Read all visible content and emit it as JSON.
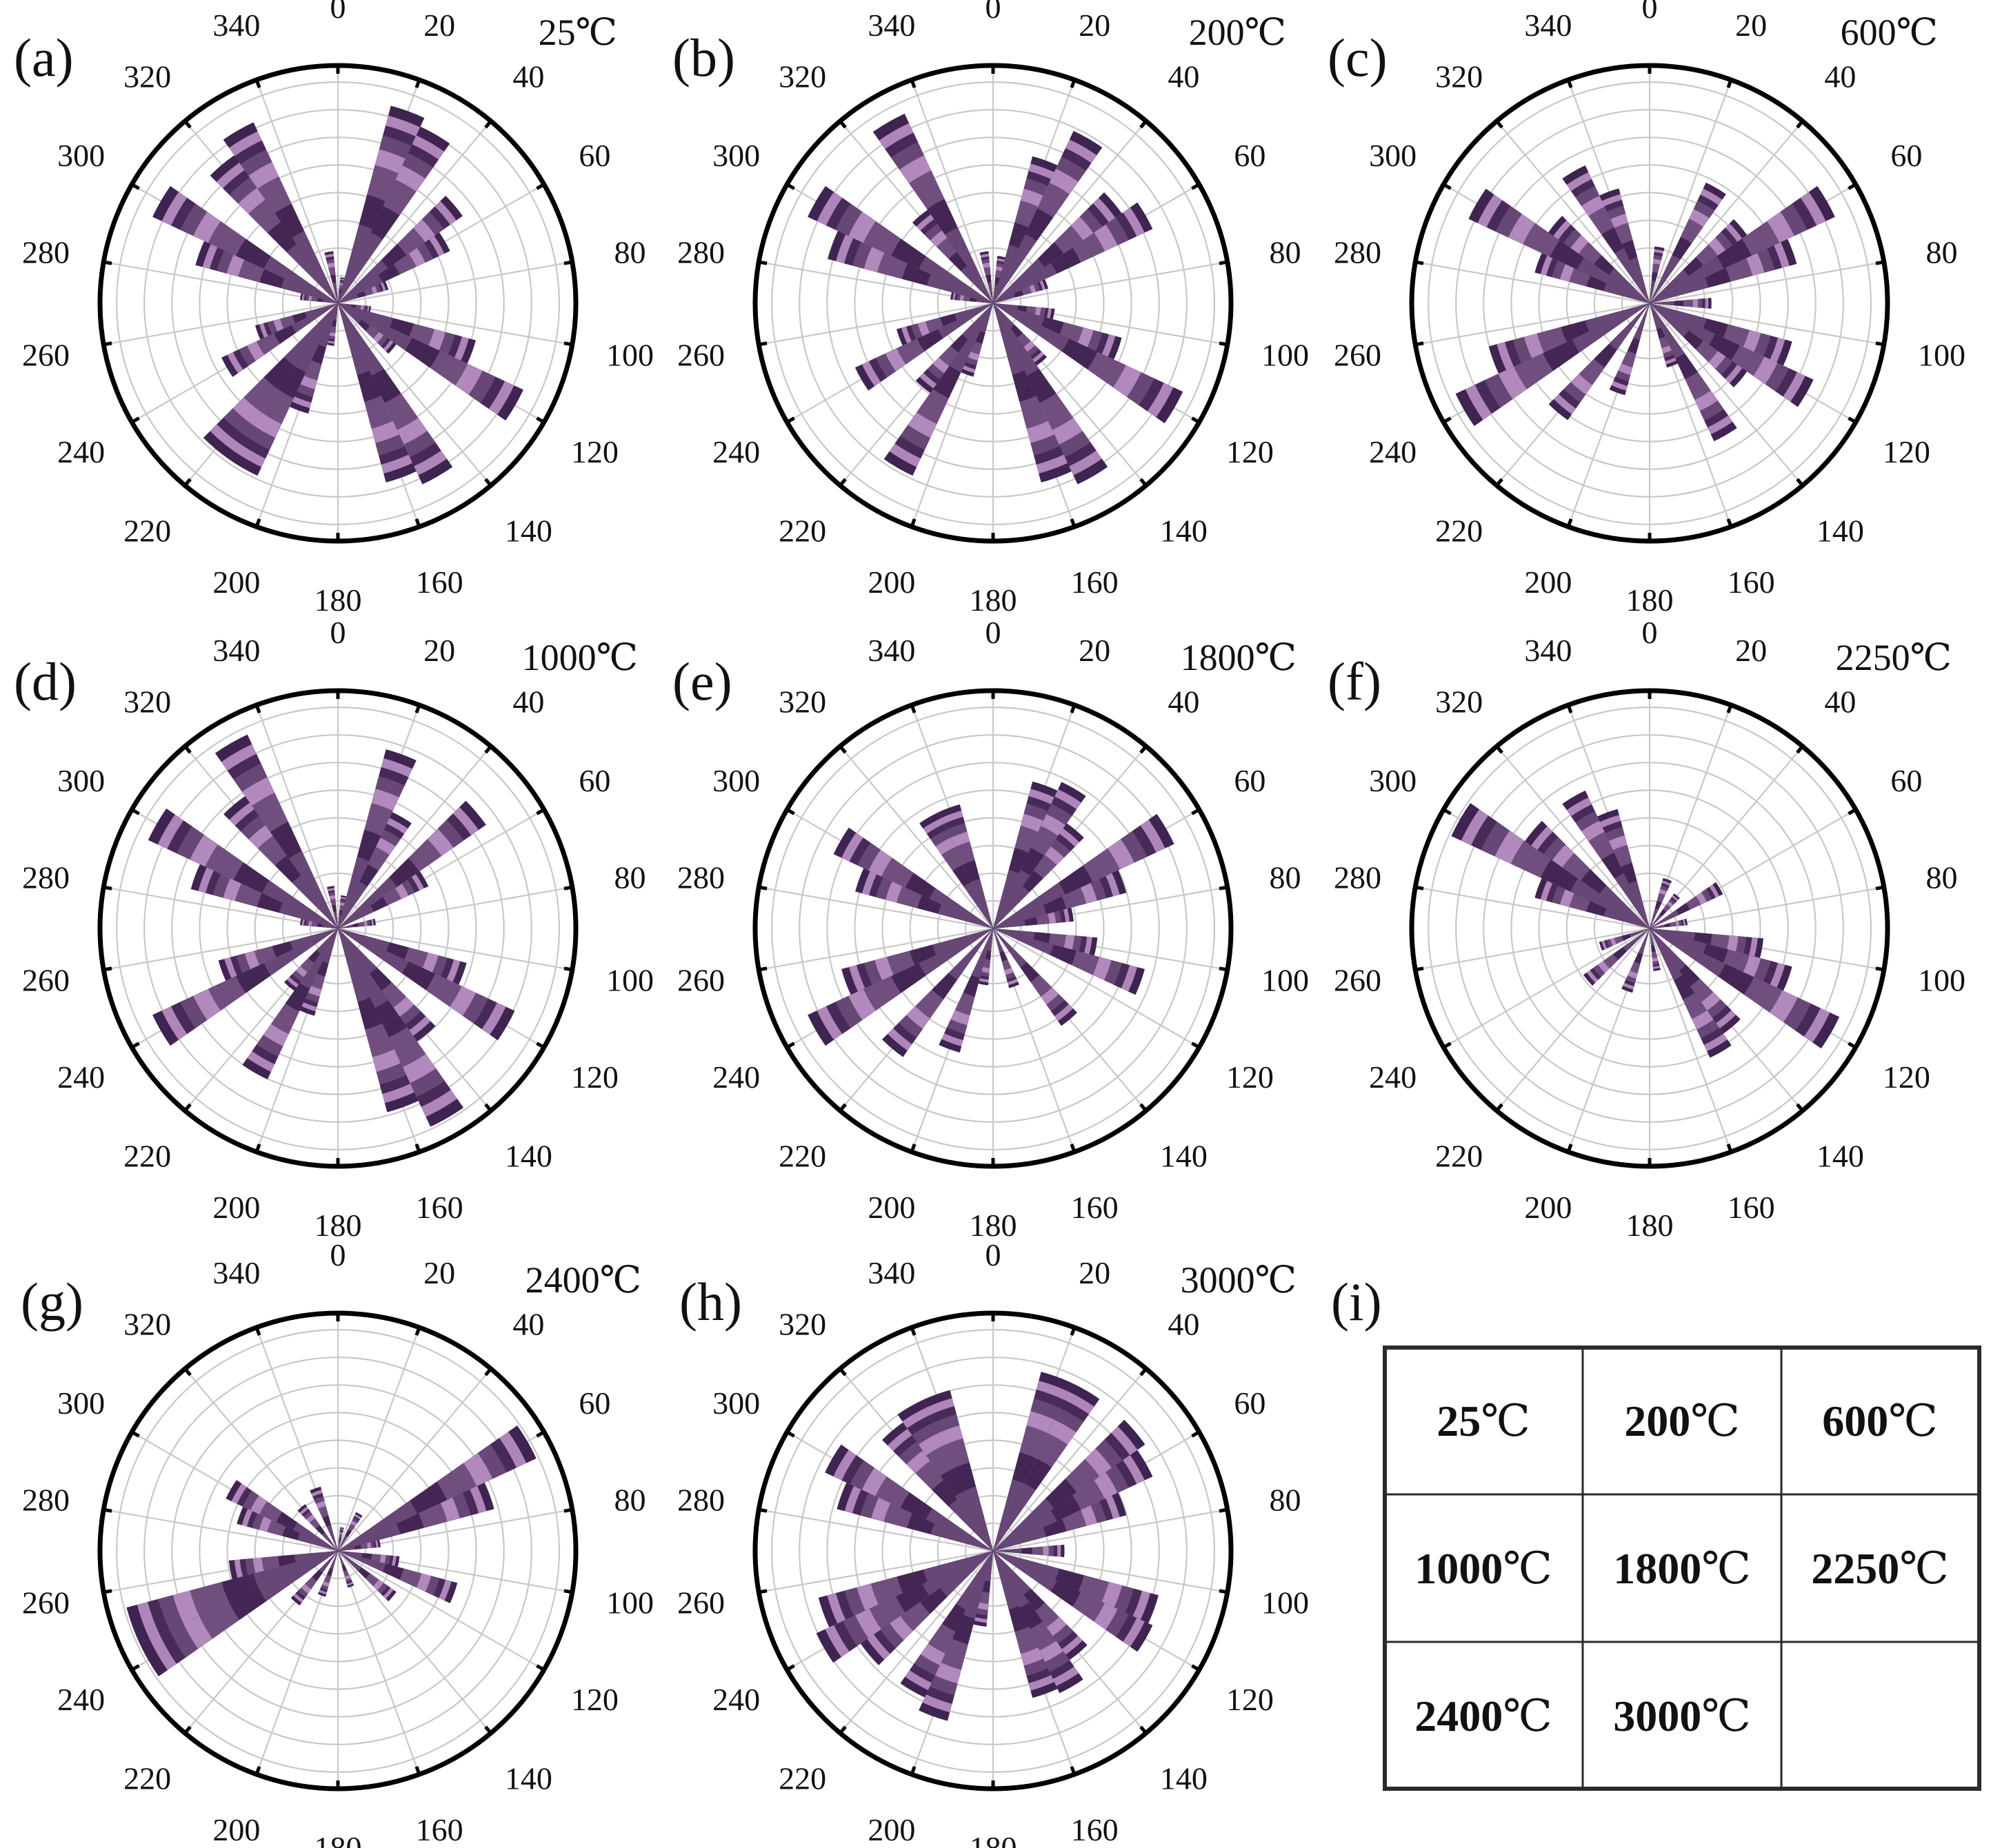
{
  "colors": {
    "dark": "#3f2350",
    "mid": "#6a4a78",
    "light": "#b98fc2",
    "lighter": "#d6b8dc",
    "grid": "#c8c8c8",
    "ring": "#000000"
  },
  "chart_data": [
    {
      "type": "polar-bar",
      "panel": "(a)",
      "temperature": "25℃",
      "angle_ticks": [
        "0",
        "20",
        "40",
        "60",
        "80",
        "100",
        "120",
        "140",
        "160",
        "180",
        "200",
        "220",
        "240",
        "260",
        "280",
        "300",
        "320",
        "340"
      ],
      "radial_max": 10,
      "bins": [
        {
          "angle": 10,
          "value": 1.1
        },
        {
          "angle": 20,
          "value": 8.6
        },
        {
          "angle": 30,
          "value": 8.2
        },
        {
          "angle": 50,
          "value": 6.4
        },
        {
          "angle": 60,
          "value": 5.2
        },
        {
          "angle": 70,
          "value": 2.2
        },
        {
          "angle": 100,
          "value": 1.4
        },
        {
          "angle": 110,
          "value": 6.0
        },
        {
          "angle": 120,
          "value": 8.6
        },
        {
          "angle": 130,
          "value": 3.0
        },
        {
          "angle": 150,
          "value": 8.4
        },
        {
          "angle": 160,
          "value": 7.8
        },
        {
          "angle": 190,
          "value": 1.8
        },
        {
          "angle": 200,
          "value": 4.8
        },
        {
          "angle": 210,
          "value": 8.0
        },
        {
          "angle": 220,
          "value": 8.0
        },
        {
          "angle": 240,
          "value": 5.4
        },
        {
          "angle": 250,
          "value": 3.6
        },
        {
          "angle": 280,
          "value": 1.6
        },
        {
          "angle": 290,
          "value": 6.2
        },
        {
          "angle": 300,
          "value": 8.6
        },
        {
          "angle": 320,
          "value": 7.6
        },
        {
          "angle": 330,
          "value": 8.4
        },
        {
          "angle": 350,
          "value": 2.2
        }
      ]
    },
    {
      "type": "polar-bar",
      "panel": "(b)",
      "temperature": "200℃",
      "angle_ticks": [
        "0",
        "20",
        "40",
        "60",
        "80",
        "100",
        "120",
        "140",
        "160",
        "180",
        "200",
        "220",
        "240",
        "260",
        "280",
        "300",
        "320",
        "340"
      ],
      "radial_max": 10,
      "bins": [
        {
          "angle": 10,
          "value": 2.0
        },
        {
          "angle": 20,
          "value": 6.4
        },
        {
          "angle": 30,
          "value": 8.0
        },
        {
          "angle": 50,
          "value": 6.6
        },
        {
          "angle": 60,
          "value": 7.4
        },
        {
          "angle": 70,
          "value": 2.4
        },
        {
          "angle": 100,
          "value": 2.6
        },
        {
          "angle": 110,
          "value": 5.6
        },
        {
          "angle": 120,
          "value": 8.8
        },
        {
          "angle": 140,
          "value": 3.2
        },
        {
          "angle": 150,
          "value": 8.4
        },
        {
          "angle": 160,
          "value": 7.8
        },
        {
          "angle": 200,
          "value": 3.2
        },
        {
          "angle": 210,
          "value": 8.0
        },
        {
          "angle": 220,
          "value": 4.6
        },
        {
          "angle": 240,
          "value": 6.4
        },
        {
          "angle": 250,
          "value": 4.2
        },
        {
          "angle": 280,
          "value": 1.8
        },
        {
          "angle": 290,
          "value": 7.2
        },
        {
          "angle": 300,
          "value": 8.6
        },
        {
          "angle": 320,
          "value": 4.8
        },
        {
          "angle": 330,
          "value": 8.8
        },
        {
          "angle": 350,
          "value": 2.2
        }
      ]
    },
    {
      "type": "polar-bar",
      "panel": "(c)",
      "temperature": "600℃",
      "angle_ticks": [
        "0",
        "20",
        "40",
        "60",
        "80",
        "100",
        "120",
        "140",
        "160",
        "180",
        "200",
        "220",
        "240",
        "260",
        "280",
        "300",
        "320",
        "340"
      ],
      "radial_max": 10,
      "bins": [
        {
          "angle": 10,
          "value": 2.4
        },
        {
          "angle": 30,
          "value": 5.6
        },
        {
          "angle": 50,
          "value": 5.0
        },
        {
          "angle": 60,
          "value": 8.6
        },
        {
          "angle": 70,
          "value": 6.4
        },
        {
          "angle": 90,
          "value": 2.6
        },
        {
          "angle": 110,
          "value": 6.2
        },
        {
          "angle": 120,
          "value": 7.6
        },
        {
          "angle": 130,
          "value": 5.0
        },
        {
          "angle": 150,
          "value": 6.4
        },
        {
          "angle": 160,
          "value": 2.8
        },
        {
          "angle": 200,
          "value": 4.0
        },
        {
          "angle": 220,
          "value": 6.0
        },
        {
          "angle": 240,
          "value": 9.0
        },
        {
          "angle": 250,
          "value": 7.0
        },
        {
          "angle": 290,
          "value": 5.0
        },
        {
          "angle": 300,
          "value": 8.4
        },
        {
          "angle": 310,
          "value": 5.2
        },
        {
          "angle": 330,
          "value": 6.4
        },
        {
          "angle": 340,
          "value": 5.0
        }
      ]
    },
    {
      "type": "polar-bar",
      "panel": "(d)",
      "temperature": "1000℃",
      "angle_ticks": [
        "0",
        "20",
        "40",
        "60",
        "80",
        "100",
        "120",
        "140",
        "160",
        "180",
        "200",
        "220",
        "240",
        "260",
        "280",
        "300",
        "320",
        "340"
      ],
      "radial_max": 10,
      "bins": [
        {
          "angle": 10,
          "value": 1.4
        },
        {
          "angle": 20,
          "value": 7.8
        },
        {
          "angle": 30,
          "value": 5.4
        },
        {
          "angle": 50,
          "value": 7.6
        },
        {
          "angle": 60,
          "value": 4.2
        },
        {
          "angle": 80,
          "value": 1.6
        },
        {
          "angle": 110,
          "value": 5.6
        },
        {
          "angle": 120,
          "value": 8.2
        },
        {
          "angle": 140,
          "value": 5.8
        },
        {
          "angle": 150,
          "value": 9.2
        },
        {
          "angle": 160,
          "value": 8.0
        },
        {
          "angle": 200,
          "value": 3.8
        },
        {
          "angle": 210,
          "value": 7.0
        },
        {
          "angle": 220,
          "value": 3.2
        },
        {
          "angle": 240,
          "value": 8.6
        },
        {
          "angle": 250,
          "value": 5.2
        },
        {
          "angle": 280,
          "value": 1.6
        },
        {
          "angle": 290,
          "value": 6.4
        },
        {
          "angle": 300,
          "value": 8.8
        },
        {
          "angle": 320,
          "value": 6.8
        },
        {
          "angle": 330,
          "value": 9.0
        },
        {
          "angle": 350,
          "value": 1.8
        }
      ]
    },
    {
      "type": "polar-bar",
      "panel": "(e)",
      "temperature": "1800℃",
      "angle_ticks": [
        "0",
        "20",
        "40",
        "60",
        "80",
        "100",
        "120",
        "140",
        "160",
        "180",
        "200",
        "220",
        "240",
        "260",
        "280",
        "300",
        "320",
        "340"
      ],
      "radial_max": 10,
      "bins": [
        {
          "angle": 20,
          "value": 6.4
        },
        {
          "angle": 30,
          "value": 6.8
        },
        {
          "angle": 40,
          "value": 5.4
        },
        {
          "angle": 60,
          "value": 8.4
        },
        {
          "angle": 70,
          "value": 5.8
        },
        {
          "angle": 80,
          "value": 3.4
        },
        {
          "angle": 100,
          "value": 4.4
        },
        {
          "angle": 110,
          "value": 6.6
        },
        {
          "angle": 140,
          "value": 5.0
        },
        {
          "angle": 160,
          "value": 2.6
        },
        {
          "angle": 190,
          "value": 2.4
        },
        {
          "angle": 200,
          "value": 5.4
        },
        {
          "angle": 220,
          "value": 6.6
        },
        {
          "angle": 240,
          "value": 8.6
        },
        {
          "angle": 250,
          "value": 6.6
        },
        {
          "angle": 290,
          "value": 6.0
        },
        {
          "angle": 300,
          "value": 7.4
        },
        {
          "angle": 330,
          "value": 5.4
        },
        {
          "angle": 340,
          "value": 5.4
        }
      ]
    },
    {
      "type": "polar-bar",
      "panel": "(f)",
      "temperature": "2250℃",
      "angle_ticks": [
        "0",
        "20",
        "40",
        "60",
        "80",
        "100",
        "120",
        "140",
        "160",
        "180",
        "200",
        "220",
        "240",
        "260",
        "280",
        "300",
        "320",
        "340"
      ],
      "radial_max": 10,
      "bins": [
        {
          "angle": 20,
          "value": 2.2
        },
        {
          "angle": 40,
          "value": 1.8
        },
        {
          "angle": 60,
          "value": 3.4
        },
        {
          "angle": 80,
          "value": 1.6
        },
        {
          "angle": 100,
          "value": 4.8
        },
        {
          "angle": 110,
          "value": 6.2
        },
        {
          "angle": 120,
          "value": 8.8
        },
        {
          "angle": 140,
          "value": 5.4
        },
        {
          "angle": 150,
          "value": 6.0
        },
        {
          "angle": 170,
          "value": 1.8
        },
        {
          "angle": 200,
          "value": 2.8
        },
        {
          "angle": 230,
          "value": 3.4
        },
        {
          "angle": 250,
          "value": 2.2
        },
        {
          "angle": 290,
          "value": 5.0
        },
        {
          "angle": 300,
          "value": 9.2
        },
        {
          "angle": 310,
          "value": 6.4
        },
        {
          "angle": 330,
          "value": 6.4
        },
        {
          "angle": 340,
          "value": 5.2
        }
      ]
    },
    {
      "type": "polar-bar",
      "panel": "(g)",
      "temperature": "2400℃",
      "angle_ticks": [
        "0",
        "20",
        "40",
        "60",
        "80",
        "100",
        "120",
        "140",
        "160",
        "180",
        "200",
        "220",
        "240",
        "260",
        "280",
        "300",
        "320",
        "340"
      ],
      "radial_max": 10,
      "bins": [
        {
          "angle": 10,
          "value": 1.0
        },
        {
          "angle": 30,
          "value": 1.8
        },
        {
          "angle": 60,
          "value": 9.2
        },
        {
          "angle": 70,
          "value": 6.8
        },
        {
          "angle": 80,
          "value": 1.8
        },
        {
          "angle": 100,
          "value": 2.6
        },
        {
          "angle": 110,
          "value": 5.2
        },
        {
          "angle": 130,
          "value": 3.0
        },
        {
          "angle": 160,
          "value": 1.6
        },
        {
          "angle": 200,
          "value": 2.0
        },
        {
          "angle": 220,
          "value": 2.8
        },
        {
          "angle": 240,
          "value": 9.2
        },
        {
          "angle": 250,
          "value": 9.2
        },
        {
          "angle": 260,
          "value": 4.6
        },
        {
          "angle": 290,
          "value": 4.4
        },
        {
          "angle": 300,
          "value": 5.2
        },
        {
          "angle": 320,
          "value": 2.4
        },
        {
          "angle": 340,
          "value": 2.8
        }
      ]
    },
    {
      "type": "polar-bar",
      "panel": "(h)",
      "temperature": "3000℃",
      "angle_ticks": [
        "0",
        "20",
        "40",
        "60",
        "80",
        "100",
        "120",
        "140",
        "160",
        "180",
        "200",
        "220",
        "240",
        "260",
        "280",
        "300",
        "320",
        "340"
      ],
      "radial_max": 10,
      "bins": [
        {
          "angle": 20,
          "value": 7.8
        },
        {
          "angle": 30,
          "value": 7.8
        },
        {
          "angle": 50,
          "value": 7.8
        },
        {
          "angle": 60,
          "value": 7.4
        },
        {
          "angle": 70,
          "value": 5.8
        },
        {
          "angle": 90,
          "value": 3.0
        },
        {
          "angle": 110,
          "value": 7.2
        },
        {
          "angle": 120,
          "value": 7.4
        },
        {
          "angle": 140,
          "value": 5.6
        },
        {
          "angle": 150,
          "value": 6.6
        },
        {
          "angle": 160,
          "value": 6.4
        },
        {
          "angle": 190,
          "value": 3.2
        },
        {
          "angle": 200,
          "value": 7.4
        },
        {
          "angle": 210,
          "value": 6.8
        },
        {
          "angle": 230,
          "value": 6.8
        },
        {
          "angle": 240,
          "value": 8.2
        },
        {
          "angle": 250,
          "value": 7.6
        },
        {
          "angle": 290,
          "value": 6.8
        },
        {
          "angle": 300,
          "value": 7.8
        },
        {
          "angle": 320,
          "value": 6.6
        },
        {
          "angle": 330,
          "value": 7.0
        },
        {
          "angle": 340,
          "value": 7.0
        }
      ]
    }
  ],
  "legend": {
    "panel": "(i)",
    "cells": [
      {
        "num": "25",
        "unit": "℃"
      },
      {
        "num": "200",
        "unit": "℃"
      },
      {
        "num": "600",
        "unit": "℃"
      },
      {
        "num": "1000",
        "unit": "℃"
      },
      {
        "num": "1800",
        "unit": "℃"
      },
      {
        "num": "2250",
        "unit": "℃"
      },
      {
        "num": "2400",
        "unit": "℃"
      },
      {
        "num": "3000",
        "unit": "℃"
      },
      {
        "num": "",
        "unit": ""
      }
    ]
  }
}
